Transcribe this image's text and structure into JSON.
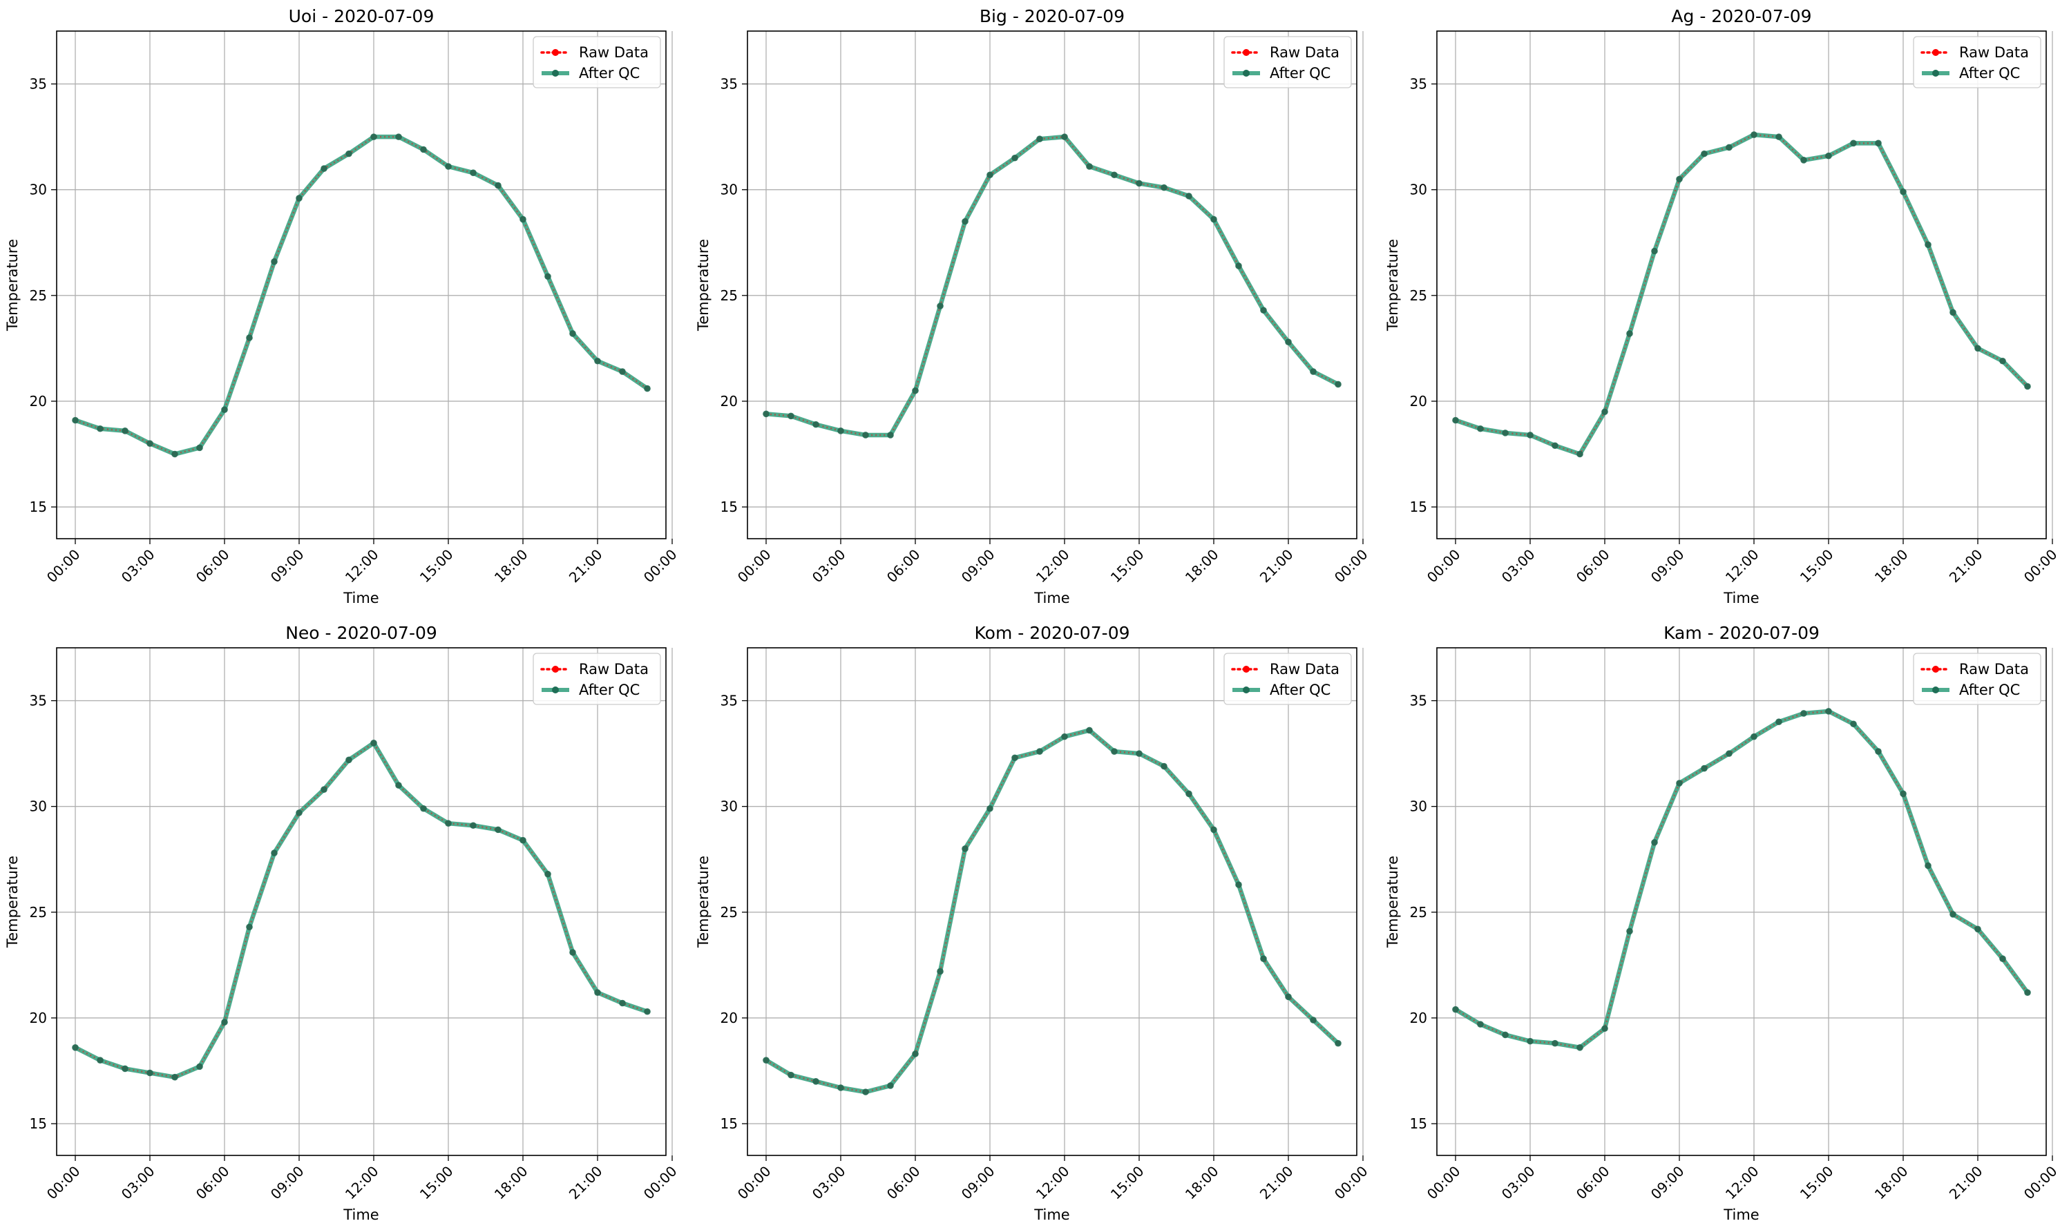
{
  "legend": {
    "raw_label": "Raw Data",
    "qc_label": "After QC"
  },
  "colors": {
    "raw": "#ff0000",
    "qc": "#2e9e7a",
    "qc_marker": "#1f6e56",
    "grid": "#b0b0b0"
  },
  "chart_data": [
    {
      "type": "line",
      "title": "Uoi - 2020-07-09",
      "xlabel": "Time",
      "ylabel": "Temperature",
      "xlim": [
        -0.75,
        23.75
      ],
      "ylim": [
        13.5,
        37.5
      ],
      "xticks": [
        0,
        3,
        6,
        9,
        12,
        15,
        18,
        21,
        24
      ],
      "xtick_labels": [
        "00:00",
        "03:00",
        "06:00",
        "09:00",
        "12:00",
        "15:00",
        "18:00",
        "21:00",
        "00:00"
      ],
      "yticks": [
        15,
        20,
        25,
        30,
        35
      ],
      "grid": true,
      "legend_position": "top-right",
      "x": [
        0,
        1,
        2,
        3,
        4,
        5,
        6,
        7,
        8,
        9,
        10,
        11,
        12,
        13,
        14,
        15,
        16,
        17,
        18,
        19,
        20,
        21,
        22,
        23
      ],
      "series": [
        {
          "name": "Raw Data",
          "values": [
            19.1,
            18.7,
            18.6,
            18.0,
            17.5,
            17.8,
            19.6,
            23.0,
            26.6,
            29.6,
            31.0,
            31.7,
            32.5,
            32.5,
            31.9,
            31.1,
            30.8,
            30.2,
            28.6,
            25.9,
            23.2,
            21.9,
            21.4,
            20.6
          ]
        },
        {
          "name": "After QC",
          "values": [
            19.1,
            18.7,
            18.6,
            18.0,
            17.5,
            17.8,
            19.6,
            23.0,
            26.6,
            29.6,
            31.0,
            31.7,
            32.5,
            32.5,
            31.9,
            31.1,
            30.8,
            30.2,
            28.6,
            25.9,
            23.2,
            21.9,
            21.4,
            20.6
          ]
        }
      ]
    },
    {
      "type": "line",
      "title": "Big - 2020-07-09",
      "xlabel": "Time",
      "ylabel": "Temperature",
      "xlim": [
        -0.75,
        23.75
      ],
      "ylim": [
        13.5,
        37.5
      ],
      "xticks": [
        0,
        3,
        6,
        9,
        12,
        15,
        18,
        21,
        24
      ],
      "xtick_labels": [
        "00:00",
        "03:00",
        "06:00",
        "09:00",
        "12:00",
        "15:00",
        "18:00",
        "21:00",
        "00:00"
      ],
      "yticks": [
        15,
        20,
        25,
        30,
        35
      ],
      "grid": true,
      "legend_position": "top-right",
      "x": [
        0,
        1,
        2,
        3,
        4,
        5,
        6,
        7,
        8,
        9,
        10,
        11,
        12,
        13,
        14,
        15,
        16,
        17,
        18,
        19,
        20,
        21,
        22,
        23
      ],
      "series": [
        {
          "name": "Raw Data",
          "values": [
            19.4,
            19.3,
            18.9,
            18.6,
            18.4,
            18.4,
            20.5,
            24.5,
            28.5,
            30.7,
            31.5,
            32.4,
            32.5,
            31.1,
            30.7,
            30.3,
            30.1,
            29.7,
            28.6,
            26.4,
            24.3,
            22.8,
            21.4,
            20.8
          ]
        },
        {
          "name": "After QC",
          "values": [
            19.4,
            19.3,
            18.9,
            18.6,
            18.4,
            18.4,
            20.5,
            24.5,
            28.5,
            30.7,
            31.5,
            32.4,
            32.5,
            31.1,
            30.7,
            30.3,
            30.1,
            29.7,
            28.6,
            26.4,
            24.3,
            22.8,
            21.4,
            20.8
          ]
        }
      ]
    },
    {
      "type": "line",
      "title": "Ag - 2020-07-09",
      "xlabel": "Time",
      "ylabel": "Temperature",
      "xlim": [
        -0.75,
        23.75
      ],
      "ylim": [
        13.5,
        37.5
      ],
      "xticks": [
        0,
        3,
        6,
        9,
        12,
        15,
        18,
        21,
        24
      ],
      "xtick_labels": [
        "00:00",
        "03:00",
        "06:00",
        "09:00",
        "12:00",
        "15:00",
        "18:00",
        "21:00",
        "00:00"
      ],
      "yticks": [
        15,
        20,
        25,
        30,
        35
      ],
      "grid": true,
      "legend_position": "top-right",
      "x": [
        0,
        1,
        2,
        3,
        4,
        5,
        6,
        7,
        8,
        9,
        10,
        11,
        12,
        13,
        14,
        15,
        16,
        17,
        18,
        19,
        20,
        21,
        22,
        23
      ],
      "series": [
        {
          "name": "Raw Data",
          "values": [
            19.1,
            18.7,
            18.5,
            18.4,
            17.9,
            17.5,
            19.5,
            23.2,
            27.1,
            30.5,
            31.7,
            32.0,
            32.6,
            32.5,
            31.4,
            31.6,
            32.2,
            32.2,
            29.9,
            27.4,
            24.2,
            22.5,
            21.9,
            20.7
          ]
        },
        {
          "name": "After QC",
          "values": [
            19.1,
            18.7,
            18.5,
            18.4,
            17.9,
            17.5,
            19.5,
            23.2,
            27.1,
            30.5,
            31.7,
            32.0,
            32.6,
            32.5,
            31.4,
            31.6,
            32.2,
            32.2,
            29.9,
            27.4,
            24.2,
            22.5,
            21.9,
            20.7
          ]
        }
      ]
    },
    {
      "type": "line",
      "title": "Neo - 2020-07-09",
      "xlabel": "Time",
      "ylabel": "Temperature",
      "xlim": [
        -0.75,
        23.75
      ],
      "ylim": [
        13.5,
        37.5
      ],
      "xticks": [
        0,
        3,
        6,
        9,
        12,
        15,
        18,
        21,
        24
      ],
      "xtick_labels": [
        "00:00",
        "03:00",
        "06:00",
        "09:00",
        "12:00",
        "15:00",
        "18:00",
        "21:00",
        "00:00"
      ],
      "yticks": [
        15,
        20,
        25,
        30,
        35
      ],
      "grid": true,
      "legend_position": "top-right",
      "x": [
        0,
        1,
        2,
        3,
        4,
        5,
        6,
        7,
        8,
        9,
        10,
        11,
        12,
        13,
        14,
        15,
        16,
        17,
        18,
        19,
        20,
        21,
        22,
        23
      ],
      "series": [
        {
          "name": "Raw Data",
          "values": [
            18.6,
            18.0,
            17.6,
            17.4,
            17.2,
            17.7,
            19.8,
            24.3,
            27.8,
            29.7,
            30.8,
            32.2,
            33.0,
            31.0,
            29.9,
            29.2,
            29.1,
            28.9,
            28.4,
            26.8,
            23.1,
            21.2,
            20.7,
            20.3
          ]
        },
        {
          "name": "After QC",
          "values": [
            18.6,
            18.0,
            17.6,
            17.4,
            17.2,
            17.7,
            19.8,
            24.3,
            27.8,
            29.7,
            30.8,
            32.2,
            33.0,
            31.0,
            29.9,
            29.2,
            29.1,
            28.9,
            28.4,
            26.8,
            23.1,
            21.2,
            20.7,
            20.3
          ]
        }
      ]
    },
    {
      "type": "line",
      "title": "Kom - 2020-07-09",
      "xlabel": "Time",
      "ylabel": "Temperature",
      "xlim": [
        -0.75,
        23.75
      ],
      "ylim": [
        13.5,
        37.5
      ],
      "xticks": [
        0,
        3,
        6,
        9,
        12,
        15,
        18,
        21,
        24
      ],
      "xtick_labels": [
        "00:00",
        "03:00",
        "06:00",
        "09:00",
        "12:00",
        "15:00",
        "18:00",
        "21:00",
        "00:00"
      ],
      "yticks": [
        15,
        20,
        25,
        30,
        35
      ],
      "grid": true,
      "legend_position": "top-right",
      "x": [
        0,
        1,
        2,
        3,
        4,
        5,
        6,
        7,
        8,
        9,
        10,
        11,
        12,
        13,
        14,
        15,
        16,
        17,
        18,
        19,
        20,
        21,
        22,
        23
      ],
      "series": [
        {
          "name": "Raw Data",
          "values": [
            18.0,
            17.3,
            17.0,
            16.7,
            16.5,
            16.8,
            18.3,
            22.2,
            28.0,
            29.9,
            32.3,
            32.6,
            33.3,
            33.6,
            32.6,
            32.5,
            31.9,
            30.6,
            28.9,
            26.3,
            22.8,
            21.0,
            19.9,
            18.8
          ]
        },
        {
          "name": "After QC",
          "values": [
            18.0,
            17.3,
            17.0,
            16.7,
            16.5,
            16.8,
            18.3,
            22.2,
            28.0,
            29.9,
            32.3,
            32.6,
            33.3,
            33.6,
            32.6,
            32.5,
            31.9,
            30.6,
            28.9,
            26.3,
            22.8,
            21.0,
            19.9,
            18.8
          ]
        }
      ]
    },
    {
      "type": "line",
      "title": "Kam - 2020-07-09",
      "xlabel": "Time",
      "ylabel": "Temperature",
      "xlim": [
        -0.75,
        23.75
      ],
      "ylim": [
        13.5,
        37.5
      ],
      "xticks": [
        0,
        3,
        6,
        9,
        12,
        15,
        18,
        21,
        24
      ],
      "xtick_labels": [
        "00:00",
        "03:00",
        "06:00",
        "09:00",
        "12:00",
        "15:00",
        "18:00",
        "21:00",
        "00:00"
      ],
      "yticks": [
        15,
        20,
        25,
        30,
        35
      ],
      "grid": true,
      "legend_position": "top-right",
      "x": [
        0,
        1,
        2,
        3,
        4,
        5,
        6,
        7,
        8,
        9,
        10,
        11,
        12,
        13,
        14,
        15,
        16,
        17,
        18,
        19,
        20,
        21,
        22,
        23
      ],
      "series": [
        {
          "name": "Raw Data",
          "values": [
            20.4,
            19.7,
            19.2,
            18.9,
            18.8,
            18.6,
            19.5,
            24.1,
            28.3,
            31.1,
            31.8,
            32.5,
            33.3,
            34.0,
            34.4,
            34.5,
            33.9,
            32.6,
            30.6,
            27.2,
            24.9,
            24.2,
            22.8,
            21.2
          ]
        },
        {
          "name": "After QC",
          "values": [
            20.4,
            19.7,
            19.2,
            18.9,
            18.8,
            18.6,
            19.5,
            24.1,
            28.3,
            31.1,
            31.8,
            32.5,
            33.3,
            34.0,
            34.4,
            34.5,
            33.9,
            32.6,
            30.6,
            27.2,
            24.9,
            24.2,
            22.8,
            21.2
          ]
        }
      ]
    }
  ]
}
